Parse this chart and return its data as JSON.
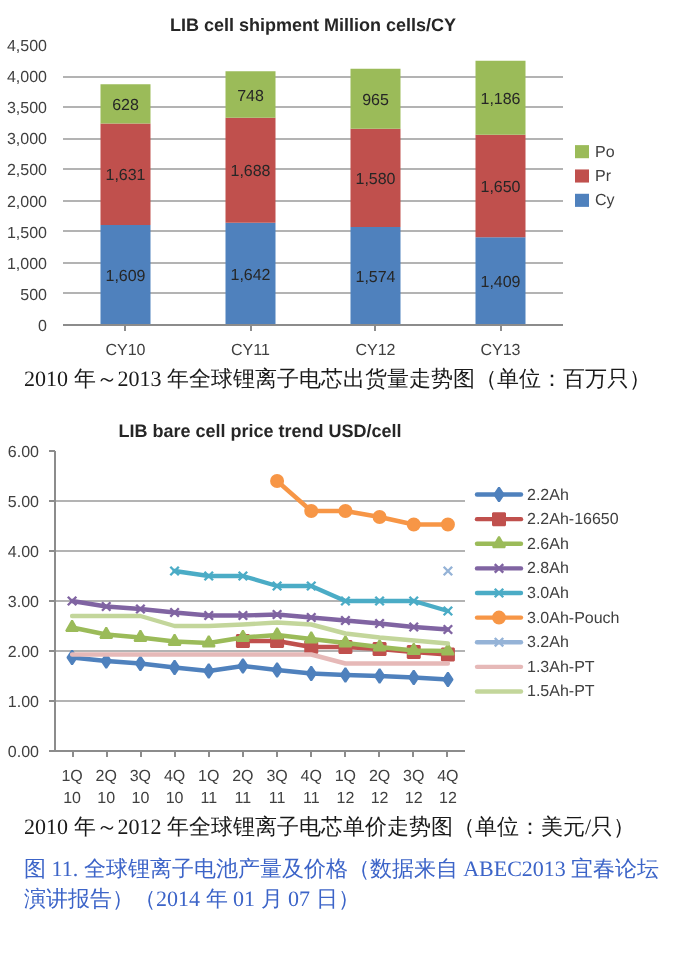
{
  "chart_data": [
    {
      "type": "bar",
      "title": "LIB cell shipment Million cells/CY",
      "categories": [
        "CY10",
        "CY11",
        "CY12",
        "CY13"
      ],
      "stacked": true,
      "series": [
        {
          "name": "Cy",
          "color": "#4f81bd",
          "values": [
            1609,
            1642,
            1574,
            1409
          ],
          "value_labels": [
            "1,609",
            "1,642",
            "1,574",
            "1,409"
          ]
        },
        {
          "name": "Pr",
          "color": "#c0504d",
          "values": [
            1631,
            1688,
            1580,
            1650
          ],
          "value_labels": [
            "1,631",
            "1,688",
            "1,580",
            "1,650"
          ]
        },
        {
          "name": "Po",
          "color": "#9bbb59",
          "values": [
            628,
            748,
            965,
            1186
          ],
          "value_labels": [
            "628",
            "748",
            "965",
            "1,186"
          ]
        }
      ],
      "ylim": [
        0,
        4500
      ],
      "yticks": [
        0,
        500,
        {
          "value": 1000,
          "label": "1,000"
        },
        {
          "value": 1500,
          "label": "1,500"
        },
        {
          "value": 2000,
          "label": "2,000"
        },
        {
          "value": 2500,
          "label": "2,500"
        },
        {
          "value": 3000,
          "label": "3,000"
        },
        {
          "value": 3500,
          "label": "3,500"
        },
        {
          "value": 4000,
          "label": "4,000"
        },
        {
          "value": 4500,
          "label": "4,500"
        }
      ],
      "grid": "y",
      "legend": "right",
      "annotations": [
        "2010 年～2013 年全球锂离子电芯出货量走势图（单位：百万只）"
      ]
    },
    {
      "type": "line",
      "title": "LIB bare cell price trend USD/cell",
      "categories": [
        "1Q\n10",
        "2Q\n10",
        "3Q\n10",
        "4Q\n10",
        "1Q\n11",
        "2Q\n11",
        "3Q\n11",
        "4Q\n11",
        "1Q\n12",
        "2Q\n12",
        "3Q\n12",
        "4Q\n12"
      ],
      "series": [
        {
          "name": "2.2Ah",
          "color": "#4f81bd",
          "marker": "diamond",
          "values": [
            1.87,
            1.8,
            1.75,
            1.67,
            1.6,
            1.7,
            1.62,
            1.55,
            1.52,
            1.5,
            1.47,
            1.43
          ]
        },
        {
          "name": "2.2Ah-16650",
          "color": "#c0504d",
          "marker": "square",
          "values": [
            null,
            null,
            null,
            null,
            null,
            2.2,
            2.2,
            2.08,
            2.08,
            2.04,
            1.98,
            1.93
          ]
        },
        {
          "name": "2.6Ah",
          "color": "#9bbb59",
          "marker": "triangle",
          "values": [
            2.47,
            2.33,
            2.27,
            2.19,
            2.16,
            2.27,
            2.32,
            2.24,
            2.16,
            2.08,
            2.01,
            2.0
          ]
        },
        {
          "name": "2.8Ah",
          "color": "#8064a2",
          "marker": "cross",
          "values": [
            3.0,
            2.89,
            2.84,
            2.77,
            2.71,
            2.71,
            2.73,
            2.67,
            2.61,
            2.55,
            2.48,
            2.43
          ]
        },
        {
          "name": "3.0Ah",
          "color": "#4bacc6",
          "marker": "cross",
          "values": [
            null,
            null,
            null,
            3.6,
            3.5,
            3.5,
            3.3,
            3.3,
            3.0,
            3.0,
            3.0,
            2.8
          ]
        },
        {
          "name": "3.0Ah-Pouch",
          "color": "#f79646",
          "marker": "circle",
          "values": [
            null,
            null,
            null,
            null,
            null,
            null,
            5.4,
            4.8,
            4.8,
            4.68,
            4.53,
            4.53
          ]
        },
        {
          "name": "3.2Ah",
          "color": "#95b3d7",
          "marker": "cross",
          "values": [
            null,
            null,
            null,
            null,
            null,
            null,
            null,
            null,
            null,
            null,
            null,
            3.6
          ]
        },
        {
          "name": "1.3Ah-PT",
          "color": "#e6b9b8",
          "marker": "none",
          "values": [
            1.93,
            1.93,
            1.93,
            1.93,
            1.93,
            1.93,
            1.93,
            1.93,
            1.75,
            1.75,
            1.75,
            1.75
          ]
        },
        {
          "name": "1.5Ah-PT",
          "color": "#c3d69b",
          "marker": "none",
          "values": [
            2.7,
            2.7,
            2.7,
            2.5,
            2.5,
            2.53,
            2.57,
            2.53,
            2.35,
            2.27,
            2.21,
            2.15
          ]
        }
      ],
      "ylim": [
        0,
        6
      ],
      "yticks": [
        {
          "value": 0,
          "label": "0.00"
        },
        {
          "value": 1,
          "label": "1.00"
        },
        {
          "value": 2,
          "label": "2.00"
        },
        {
          "value": 3,
          "label": "3.00"
        },
        {
          "value": 4,
          "label": "4.00"
        },
        {
          "value": 5,
          "label": "5.00"
        },
        {
          "value": 6,
          "label": "6.00"
        }
      ],
      "grid": "y",
      "legend": "right",
      "line_style": "solid",
      "annotations": [
        "2010 年～2012 年全球锂离子电芯单价走势图（单位：美元/只）",
        "图 11. 全球锂离子电池产量及价格（数据来自 ABEC2013 宜春论坛演讲报告）（2014 年 01 月 07 日）"
      ]
    }
  ]
}
